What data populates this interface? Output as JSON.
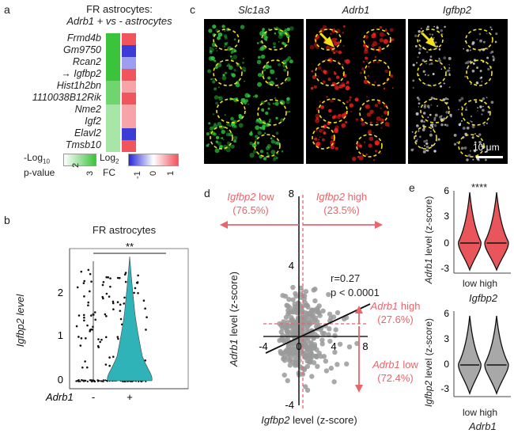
{
  "panel_labels": {
    "a": "a",
    "b": "b",
    "c": "c",
    "d": "d",
    "e": "e"
  },
  "panel_a": {
    "title_line1": "FR astrocytes:",
    "title_line2": "Adrb1 + vs - astrocytes",
    "genes": [
      "Frmd4b",
      "Gm9750",
      "Rcan2",
      "Igfbp2",
      "Hist1h2bn",
      "1110038B12Rik",
      "Nme2",
      "Igf2",
      "Elavl2",
      "Tmsb10"
    ],
    "arrow": "→",
    "pvalue_colors": [
      "#3cc33c",
      "#3cc33c",
      "#3cc33c",
      "#3cc33c",
      "#6fd56f",
      "#6fd56f",
      "#a6e6a6",
      "#a6e6a6",
      "#a6e6a6",
      "#a6e6a6"
    ],
    "fc_colors": [
      "#f0545c",
      "#3b3bd6",
      "#9e9ef0",
      "#f0545c",
      "#f7a4a8",
      "#f0545c",
      "#f7a4a8",
      "#f7a4a8",
      "#3b3bd6",
      "#f0545c"
    ],
    "legend_p_label1": "-Log",
    "legend_p_sub": "10",
    "legend_p_label2": "p-value",
    "legend_p_ticks": [
      "2",
      "3"
    ],
    "legend_fc_label1": "Log",
    "legend_fc_sub": "2",
    "legend_fc_label2": "FC",
    "legend_fc_ticks": [
      "-1",
      "0",
      "1"
    ]
  },
  "panel_b": {
    "title": "FR astrocytes",
    "ylabel": "Igfbp2 level",
    "yticks": [
      "0",
      "1",
      "2"
    ],
    "xlabel": "Adrb1",
    "groups": [
      "-",
      "+"
    ],
    "significance": "**",
    "violin_color": "#2fb3b8"
  },
  "panel_c": {
    "channels": [
      "Slc1a3",
      "Adrb1",
      "Igfbp2"
    ],
    "channel_colors": [
      "#2ecc40",
      "#ff2020",
      "#dddddd"
    ],
    "scale_bar": "10 μm"
  },
  "panel_d": {
    "left_box_gene": "Igfbp2",
    "left_box_text": " low",
    "left_box_pct": "(76.5%)",
    "right_box_gene": "Igfbp2",
    "right_box_text": " high",
    "right_box_pct": "(23.5%)",
    "adrb1_high_gene": "Adrb1",
    "adrb1_high_text": " high",
    "adrb1_high_pct": "(27.6%)",
    "adrb1_low_gene": "Adrb1",
    "adrb1_low_text": " low",
    "adrb1_low_pct": "(72.4%)",
    "r_text": "r=0.27",
    "p_text": "p < 0.0001",
    "ylabel_gene": "Adrb1",
    "ylabel_rest": " level (z-score)",
    "xlabel_gene": "Igfbp2",
    "xlabel_rest": " level (z-score)",
    "xticks": [
      "-4",
      "0",
      "4",
      "8"
    ],
    "yticks": [
      "8",
      "4",
      "-4"
    ]
  },
  "panel_e": {
    "significance": "****",
    "top_ylabel_gene": "Adrb1",
    "top_ylabel_rest": " level (z-score)",
    "top_xticks": "low high",
    "top_xlabel": "Igfbp2",
    "top_yticks": [
      "6",
      "3",
      "0",
      "-3"
    ],
    "top_color": "#e8565c",
    "bottom_ylabel_gene": "Igfbp2",
    "bottom_ylabel_rest": " level (z-score)",
    "bottom_xticks": "low high",
    "bottom_xlabel": "Adrb1",
    "bottom_yticks": [
      "6",
      "3",
      "0",
      "-3"
    ],
    "bottom_color": "#a8a8a8"
  }
}
